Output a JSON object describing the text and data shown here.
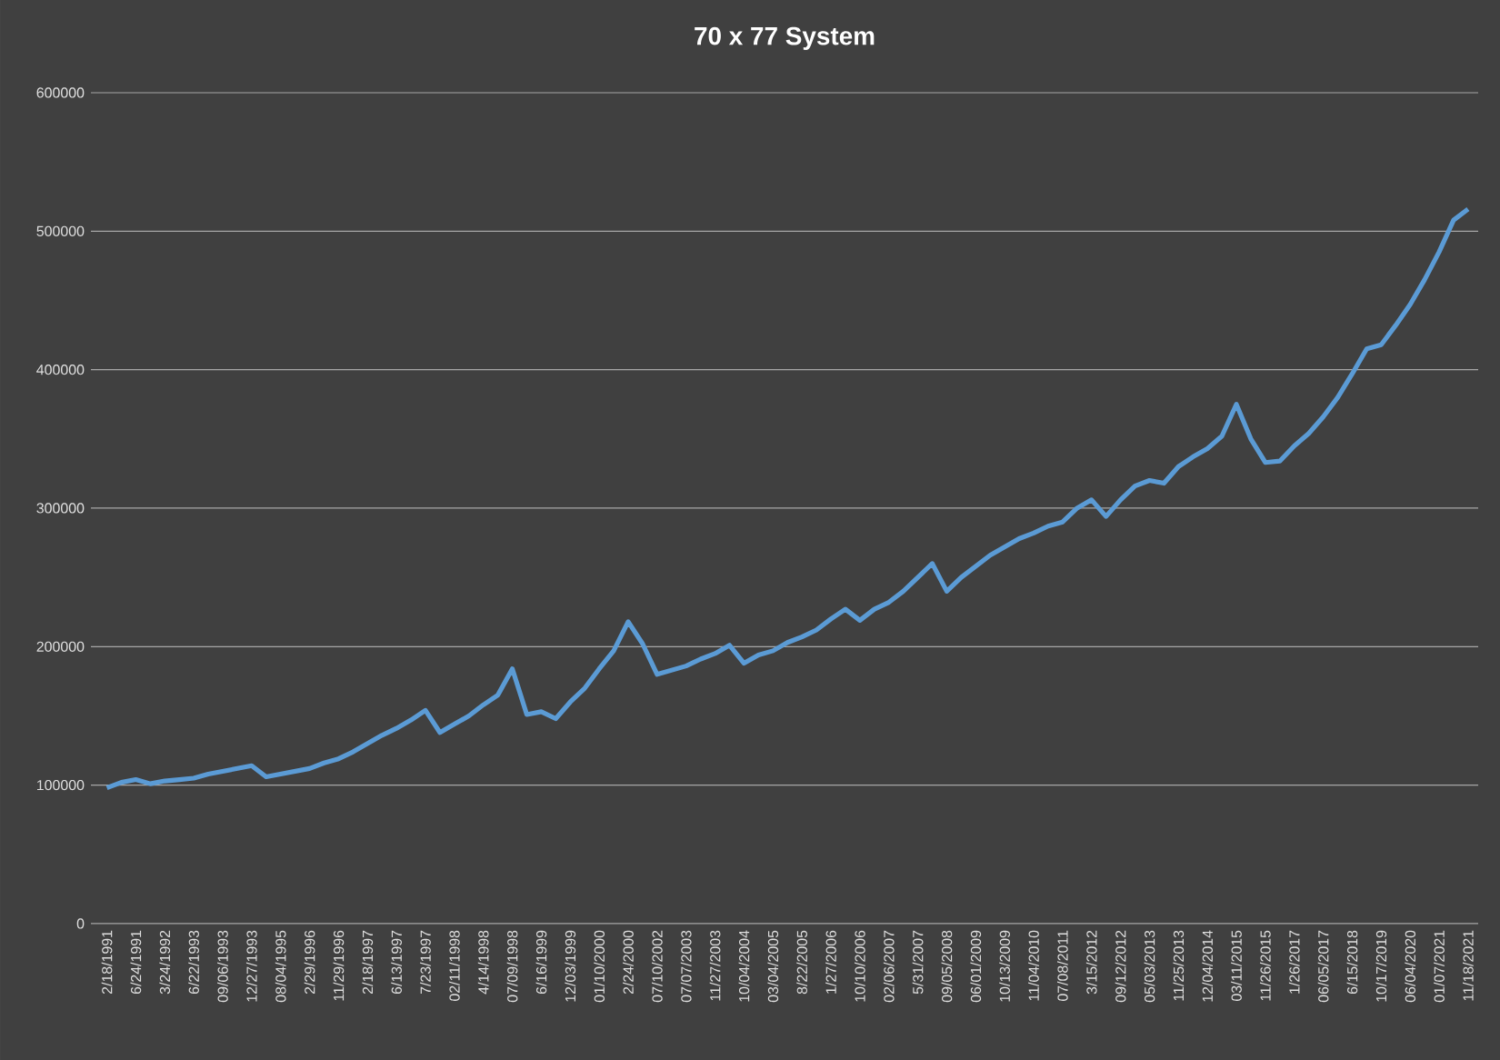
{
  "chart_data": {
    "type": "line",
    "title": "70 x 77 System",
    "categories": [
      "2/18/1991",
      null,
      "6/24/1991",
      null,
      "3/24/1992",
      null,
      "6/22/1993",
      null,
      "09/06/1993",
      null,
      "12/27/1993",
      null,
      "08/04/1995",
      null,
      "2/29/1996",
      null,
      "11/29/1996",
      null,
      "2/18/1997",
      null,
      "6/13/1997",
      null,
      "7/23/1997",
      null,
      "02/11/1998",
      null,
      "4/14/1998",
      null,
      "07/09/1998",
      null,
      "6/16/1999",
      null,
      "12/03/1999",
      null,
      "01/10/2000",
      null,
      "2/24/2000",
      null,
      "07/10/2002",
      null,
      "07/07/2003",
      null,
      "11/27/2003",
      null,
      "10/04/2004",
      null,
      "03/04/2005",
      null,
      "8/22/2005",
      null,
      "1/27/2006",
      null,
      "10/10/2006",
      null,
      "02/06/2007",
      null,
      "5/31/2007",
      null,
      "09/05/2008",
      null,
      "06/01/2009",
      null,
      "10/13/2009",
      null,
      "11/04/2010",
      null,
      "07/08/2011",
      null,
      "3/15/2012",
      null,
      "09/12/2012",
      null,
      "05/03/2013",
      null,
      "11/25/2013",
      null,
      "12/04/2014",
      null,
      "03/11/2015",
      null,
      "11/26/2015",
      null,
      "1/26/2017",
      null,
      "06/05/2017",
      null,
      "6/15/2018",
      null,
      "10/17/2019",
      null,
      "06/04/2020",
      null,
      "01/07/2021",
      null,
      "11/18/2021"
    ],
    "values": [
      98000,
      102000,
      104000,
      101000,
      103000,
      104000,
      105000,
      108000,
      110000,
      112000,
      114000,
      106000,
      108000,
      110000,
      112000,
      116000,
      119000,
      124000,
      130000,
      136000,
      141000,
      147000,
      154000,
      138000,
      144000,
      150000,
      158000,
      165000,
      184000,
      151000,
      153000,
      148000,
      160000,
      170000,
      184000,
      197000,
      218000,
      202000,
      180000,
      183000,
      186000,
      191000,
      195000,
      201000,
      188000,
      194000,
      197000,
      203000,
      207000,
      212000,
      220000,
      227000,
      219000,
      227000,
      232000,
      240000,
      250000,
      260000,
      240000,
      250000,
      258000,
      266000,
      272000,
      278000,
      282000,
      287000,
      290000,
      300000,
      306000,
      294000,
      306000,
      316000,
      320000,
      318000,
      330000,
      337000,
      343000,
      352000,
      375000,
      350000,
      333000,
      334000,
      345000,
      354000,
      366000,
      380000,
      397000,
      415000,
      418000,
      432000,
      447000,
      465000,
      485000,
      508000,
      516000
    ],
    "color": "#5b9bd5",
    "ylim": [
      0,
      600000
    ],
    "yticks": [
      0,
      100000,
      200000,
      300000,
      400000,
      500000,
      600000
    ],
    "grid": "y"
  }
}
